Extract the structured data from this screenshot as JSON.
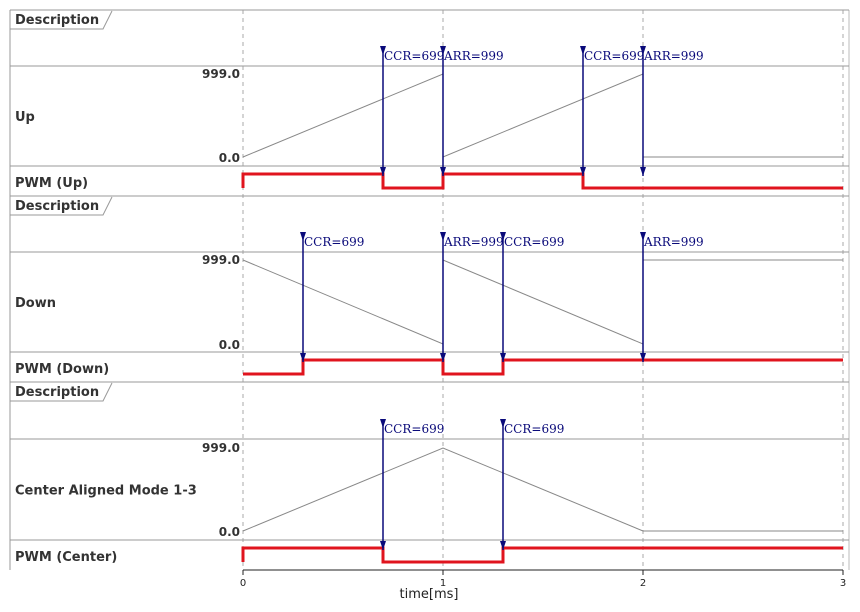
{
  "chart_data": {
    "type": "line",
    "xlabel": "time[ms]",
    "x_range": [
      0,
      3
    ],
    "x_ticks": [
      "0",
      "1",
      "2",
      "3"
    ],
    "grid": "vertical dashed at each tick",
    "colors": {
      "counter": "#888888",
      "pwm": "#e0141e",
      "marker": "#0a0a7a",
      "grid": "#aaaaaa"
    },
    "panels": [
      {
        "description_label": "Description",
        "counter_label": "Up",
        "y_max_label": "999.0",
        "y_min_label": "0.0",
        "y_range": [
          0,
          999
        ],
        "counter": {
          "x": [
            0,
            1,
            1,
            2,
            2,
            3
          ],
          "y": [
            0,
            999,
            0,
            999,
            0,
            0
          ]
        },
        "pwm_label": "PWM (Up)",
        "pwm": {
          "x": [
            0,
            0.7,
            1,
            1.7,
            3
          ],
          "level": [
            1,
            0,
            1,
            0,
            0
          ]
        },
        "markers": [
          {
            "x": 0.7,
            "text": "CCR=699"
          },
          {
            "x": 1.0,
            "text": "ARR=999"
          },
          {
            "x": 1.7,
            "text": "CCR=699"
          },
          {
            "x": 2.0,
            "text": "ARR=999"
          }
        ]
      },
      {
        "description_label": "Description",
        "counter_label": "Down",
        "y_max_label": "999.0",
        "y_min_label": "0.0",
        "y_range": [
          0,
          999
        ],
        "counter": {
          "x": [
            0,
            1,
            1,
            2,
            2,
            3
          ],
          "y": [
            999,
            0,
            999,
            0,
            999,
            999
          ]
        },
        "pwm_label": "PWM (Down)",
        "pwm": {
          "x": [
            0,
            0.3,
            1,
            1.3,
            3
          ],
          "level": [
            0,
            1,
            0,
            1,
            1
          ]
        },
        "markers": [
          {
            "x": 0.3,
            "text": "CCR=699"
          },
          {
            "x": 1.0,
            "text": "ARR=999"
          },
          {
            "x": 1.3,
            "text": "CCR=699"
          },
          {
            "x": 2.0,
            "text": "ARR=999"
          }
        ]
      },
      {
        "description_label": "Description",
        "counter_label": "Center Aligned Mode 1-3",
        "y_max_label": "999.0",
        "y_min_label": "0.0",
        "y_range": [
          0,
          999
        ],
        "counter": {
          "x": [
            0,
            1,
            2,
            3
          ],
          "y": [
            0,
            999,
            0,
            0
          ]
        },
        "pwm_label": "PWM (Center)",
        "pwm": {
          "x": [
            0,
            0.7,
            1.3,
            3
          ],
          "level": [
            1,
            0,
            1,
            1
          ]
        },
        "markers": [
          {
            "x": 0.7,
            "text": "CCR=699"
          },
          {
            "x": 1.3,
            "text": "CCR=699"
          }
        ]
      }
    ]
  }
}
